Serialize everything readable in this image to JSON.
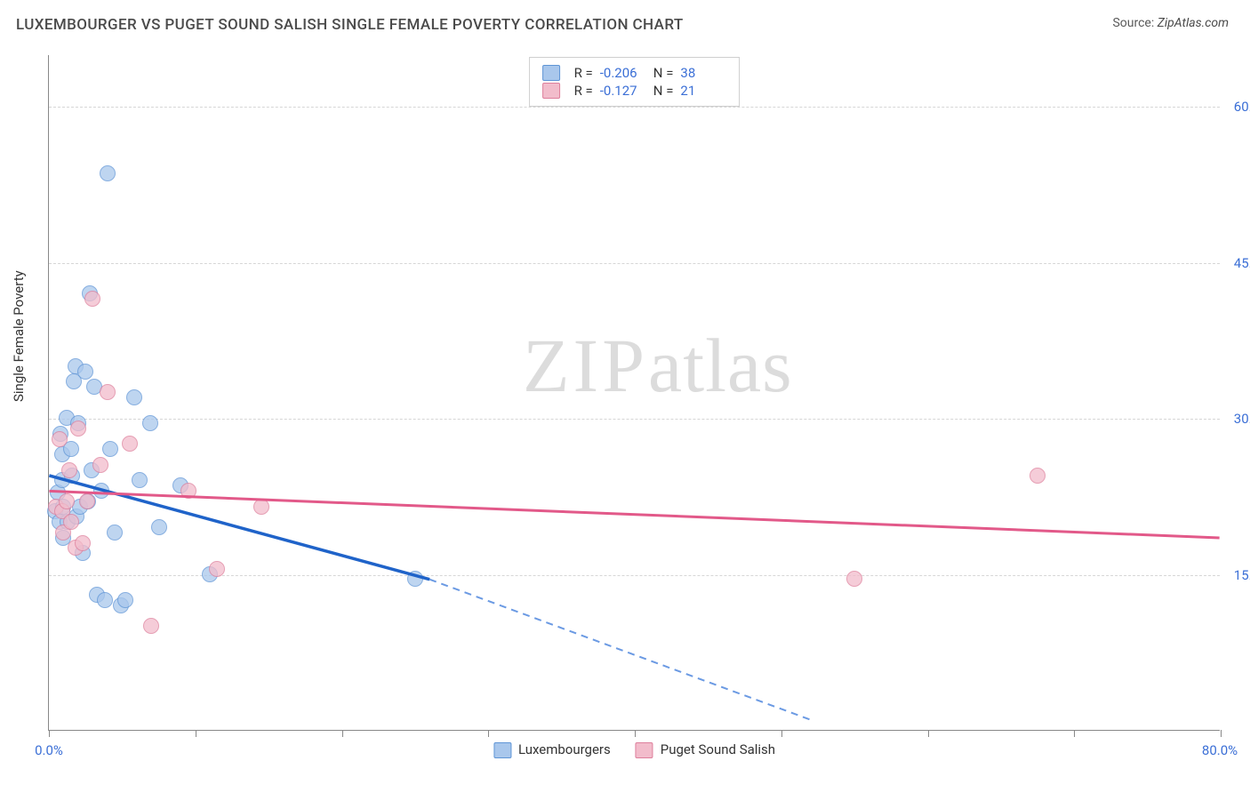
{
  "header": {
    "title": "LUXEMBOURGER VS PUGET SOUND SALISH SINGLE FEMALE POVERTY CORRELATION CHART",
    "source_prefix": "Source: ",
    "source_link": "ZipAtlas.com"
  },
  "chart": {
    "type": "scatter",
    "y_axis_label": "Single Female Poverty",
    "background_color": "#ffffff",
    "grid_color": "#d6d6d6",
    "axis_color": "#888888",
    "y_axis": {
      "min": 0,
      "max": 65,
      "ticks": [
        15,
        30,
        45,
        60
      ],
      "tick_labels": [
        "15.0%",
        "30.0%",
        "45.0%",
        "60.0%"
      ],
      "label_color": "#3b6fd6"
    },
    "x_axis": {
      "min": 0,
      "max": 80,
      "tick_positions": [
        0,
        10,
        20,
        30,
        40,
        50,
        60,
        70,
        80
      ],
      "label_min": "0.0%",
      "label_max": "80.0%",
      "label_color": "#3b6fd6"
    },
    "series": [
      {
        "id": "lux",
        "name": "Luxembourgers",
        "fill": "#a9c7ec",
        "stroke": "#5f95d6",
        "trend_color": "#1f63c9",
        "trend_dash_color": "#6b9ae3",
        "R": "-0.206",
        "N": "38",
        "trend": {
          "x0": 0,
          "y0": 24.5,
          "x1_solid": 26,
          "y1_solid": 14.5,
          "x1_dash": 52,
          "y1_dash": 1.0
        },
        "points": [
          [
            0.4,
            21.0
          ],
          [
            0.6,
            22.8
          ],
          [
            0.7,
            20.0
          ],
          [
            0.8,
            28.5
          ],
          [
            0.9,
            24.0
          ],
          [
            0.9,
            26.5
          ],
          [
            1.0,
            18.5
          ],
          [
            1.0,
            21.5
          ],
          [
            1.2,
            30.0
          ],
          [
            1.3,
            20.0
          ],
          [
            1.5,
            27.0
          ],
          [
            1.6,
            24.5
          ],
          [
            1.7,
            33.5
          ],
          [
            1.8,
            35.0
          ],
          [
            1.9,
            20.5
          ],
          [
            2.0,
            29.5
          ],
          [
            2.1,
            21.5
          ],
          [
            2.3,
            17.0
          ],
          [
            2.5,
            34.5
          ],
          [
            2.7,
            22.0
          ],
          [
            2.8,
            42.0
          ],
          [
            2.9,
            25.0
          ],
          [
            3.1,
            33.0
          ],
          [
            3.3,
            13.0
          ],
          [
            3.6,
            23.0
          ],
          [
            3.8,
            12.5
          ],
          [
            4.2,
            27.0
          ],
          [
            4.5,
            19.0
          ],
          [
            4.9,
            12.0
          ],
          [
            5.2,
            12.5
          ],
          [
            5.8,
            32.0
          ],
          [
            6.2,
            24.0
          ],
          [
            6.9,
            29.5
          ],
          [
            7.5,
            19.5
          ],
          [
            9.0,
            23.5
          ],
          [
            11.0,
            15.0
          ],
          [
            4.0,
            53.5
          ],
          [
            25.0,
            14.5
          ]
        ]
      },
      {
        "id": "pss",
        "name": "Puget Sound Salish",
        "fill": "#f2bccb",
        "stroke": "#de7f9c",
        "trend_color": "#e25989",
        "R": "-0.127",
        "N": "21",
        "trend": {
          "x0": 0,
          "y0": 23.0,
          "x1_solid": 80,
          "y1_solid": 18.5
        },
        "points": [
          [
            0.5,
            21.5
          ],
          [
            0.7,
            28.0
          ],
          [
            0.9,
            21.0
          ],
          [
            1.0,
            19.0
          ],
          [
            1.2,
            22.0
          ],
          [
            1.4,
            25.0
          ],
          [
            1.5,
            20.0
          ],
          [
            1.8,
            17.5
          ],
          [
            2.0,
            29.0
          ],
          [
            2.3,
            18.0
          ],
          [
            2.6,
            22.0
          ],
          [
            3.0,
            41.5
          ],
          [
            3.5,
            25.5
          ],
          [
            4.0,
            32.5
          ],
          [
            5.5,
            27.5
          ],
          [
            7.0,
            10.0
          ],
          [
            9.5,
            23.0
          ],
          [
            11.5,
            15.5
          ],
          [
            14.5,
            21.5
          ],
          [
            55.0,
            14.5
          ],
          [
            67.5,
            24.5
          ]
        ]
      }
    ],
    "top_legend": {
      "label_R": "R =",
      "label_N": "N ="
    },
    "watermark": {
      "zip": "ZIP",
      "rest": "atlas"
    }
  }
}
